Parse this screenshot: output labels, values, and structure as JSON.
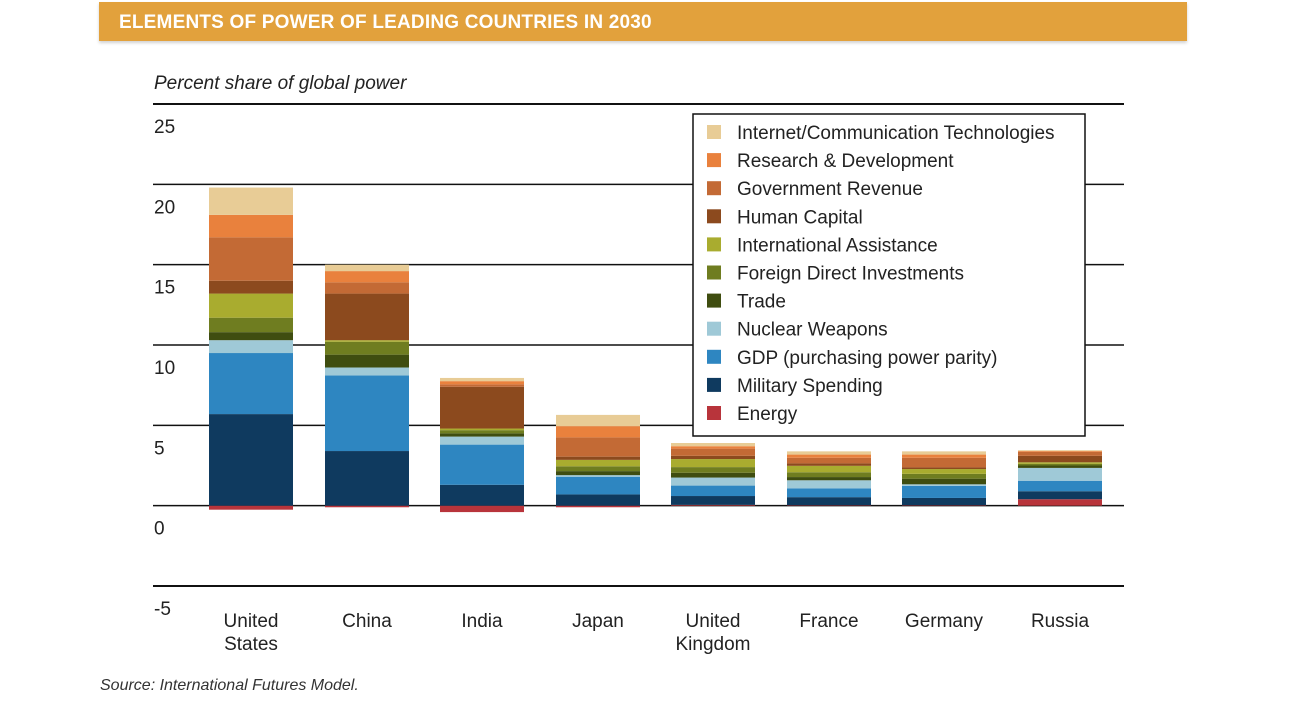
{
  "header": {
    "title": "ELEMENTS OF POWER OF LEADING COUNTRIES IN 2030"
  },
  "footer": {
    "source": "Source: International Futures Model."
  },
  "chart_data": {
    "type": "bar",
    "stacked": true,
    "title": "ELEMENTS OF POWER OF LEADING COUNTRIES IN 2030",
    "ylabel": "Percent share of global power",
    "xlabel": "",
    "ylim": [
      -5,
      25
    ],
    "yticks": [
      25,
      20,
      15,
      10,
      5,
      0,
      -5
    ],
    "grid": true,
    "legend_position": "top-right",
    "categories": [
      [
        "United",
        "States"
      ],
      [
        "China"
      ],
      [
        "India"
      ],
      [
        "Japan"
      ],
      [
        "United",
        "Kingdom"
      ],
      [
        "France"
      ],
      [
        "Germany"
      ],
      [
        "Russia"
      ]
    ],
    "series": [
      {
        "name": "Energy",
        "color": "#b8343b",
        "values": [
          -0.25,
          -0.1,
          -0.4,
          -0.1,
          0.05,
          0.03,
          0.03,
          0.4
        ]
      },
      {
        "name": "Military Spending",
        "color": "#0f3a5f",
        "values": [
          5.7,
          3.4,
          1.3,
          0.7,
          0.55,
          0.5,
          0.45,
          0.5
        ]
      },
      {
        "name": "GDP (purchasing power parity)",
        "color": "#2e86c1",
        "values": [
          3.8,
          4.7,
          2.5,
          1.1,
          0.65,
          0.55,
          0.75,
          0.65
        ]
      },
      {
        "name": "Nuclear Weapons",
        "color": "#9fc9d7",
        "values": [
          0.8,
          0.5,
          0.5,
          0.1,
          0.5,
          0.5,
          0.1,
          0.8
        ]
      },
      {
        "name": "Trade",
        "color": "#3f4d10",
        "values": [
          0.5,
          0.8,
          0.2,
          0.25,
          0.3,
          0.2,
          0.35,
          0.15
        ]
      },
      {
        "name": "Foreign Direct Investments",
        "color": "#6f7d20",
        "values": [
          0.9,
          0.8,
          0.2,
          0.3,
          0.35,
          0.3,
          0.3,
          0.1
        ]
      },
      {
        "name": "International Assistance",
        "color": "#a9ac2f",
        "values": [
          1.5,
          0.1,
          0.1,
          0.4,
          0.5,
          0.4,
          0.3,
          0.1
        ]
      },
      {
        "name": "Human Capital",
        "color": "#8c4a1e",
        "values": [
          0.8,
          2.9,
          2.6,
          0.2,
          0.2,
          0.15,
          0.1,
          0.4
        ]
      },
      {
        "name": "Government Revenue",
        "color": "#c36a35",
        "values": [
          2.7,
          0.7,
          0.15,
          1.2,
          0.45,
          0.35,
          0.6,
          0.25
        ]
      },
      {
        "name": "Research & Development",
        "color": "#e9813d",
        "values": [
          1.4,
          0.7,
          0.2,
          0.7,
          0.15,
          0.2,
          0.2,
          0.05
        ]
      },
      {
        "name": "Internet/Communication Technologies",
        "color": "#e8cc96",
        "values": [
          1.7,
          0.4,
          0.2,
          0.7,
          0.2,
          0.2,
          0.2,
          0.05
        ]
      }
    ]
  }
}
